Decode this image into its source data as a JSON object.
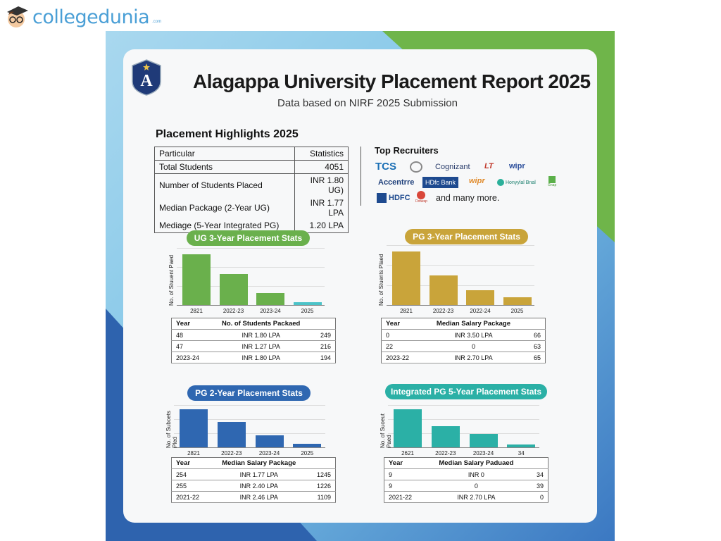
{
  "brand": {
    "name": "collegedunia",
    "suffix": ".com"
  },
  "poster": {
    "title": "Alagappa University Placement Report 2025",
    "subtitle": "Data based on NIRF 2025 Submission",
    "crest_letter": "A",
    "highlights": {
      "title": "Placement Highlights 2025",
      "header": [
        "Particular",
        "Statistics"
      ],
      "rows": [
        [
          "Total Students",
          "4051"
        ],
        [
          "Number of Students Placed",
          "INR 1.80 UG)"
        ],
        [
          "Median Package (2-Year UG)",
          "INR 1.77 LPA"
        ],
        [
          "Mediage (5-Year Integrated PG)",
          "1.20 LPA"
        ]
      ]
    },
    "recruiters": {
      "title": "Top Recruiters",
      "logos": [
        "TCS",
        "Cognizant",
        "LT",
        "wipr",
        "Accentrre",
        "HDfc Bank",
        "wipr",
        "Honyylal Bnal",
        "Gnap",
        "HDFC",
        "Dotwap"
      ],
      "more": "and many more."
    },
    "colors": {
      "ug3": "#6ab04c",
      "pg3": "#c9a43a",
      "pg2": "#2f67b1",
      "int5": "#2bb0a6",
      "green": "#6fb54a",
      "blue": "#2e63ae"
    },
    "sections": [
      {
        "title": "UG 3-Year Placement Stats",
        "ylabel": "No. of Stuuent Paed",
        "categories": [
          "2821",
          "2022-23",
          "2023-24",
          "2025"
        ],
        "relative_values": [
          100,
          61,
          24,
          6
        ],
        "table": {
          "header": [
            "Year",
            "No. of Students Packaed",
            ""
          ],
          "rows": [
            [
              "48",
              "INR 1.80 LPA",
              "249"
            ],
            [
              "47",
              "INR 1.27 LPA",
              "216"
            ],
            [
              "2023-24",
              "INR 1.80 LPA",
              "194"
            ]
          ]
        }
      },
      {
        "title": "PG 3-Year Placement Stats",
        "ylabel": "No. of Stuents Plaed",
        "categories": [
          "2821",
          "2022-23",
          "2022-24",
          "2025"
        ],
        "relative_values": [
          100,
          55,
          28,
          15
        ],
        "table": {
          "header": [
            "Year",
            "Median Salary Package",
            ""
          ],
          "rows": [
            [
              "0",
              "INR 3.50 LPA",
              "66"
            ],
            [
              "22",
              "0",
              "63"
            ],
            [
              "2023-22",
              "INR 2.70 LPA",
              "65"
            ]
          ]
        }
      },
      {
        "title": "PG 2-Year Placement Stats",
        "ylabel": "No. of Suboets Pled",
        "categories": [
          "2821",
          "2022-23",
          "2023-24",
          "2025"
        ],
        "relative_values": [
          100,
          68,
          32,
          9
        ],
        "table": {
          "header": [
            "Year",
            "Median Salary Package",
            ""
          ],
          "rows": [
            [
              "254",
              "INR 1.77 LPA",
              "1245"
            ],
            [
              "255",
              "INR 2.40 LPA",
              "1226"
            ],
            [
              "2021-22",
              "INR 2.46 LPA",
              "1109"
            ]
          ]
        }
      },
      {
        "title": "Integrated PG 5-Year Placement Stats",
        "ylabel": "No. of Suoeut Paed",
        "categories": [
          "2621",
          "2022-23",
          "2023-24",
          "34"
        ],
        "relative_values": [
          100,
          56,
          36,
          8
        ],
        "table": {
          "header": [
            "Year",
            "Median Salary Paduaed",
            ""
          ],
          "rows": [
            [
              "9",
              "INR 0",
              "34"
            ],
            [
              "9",
              "0",
              "39"
            ],
            [
              "2021-22",
              "INR 2.70 LPA",
              "0"
            ]
          ]
        }
      }
    ]
  }
}
